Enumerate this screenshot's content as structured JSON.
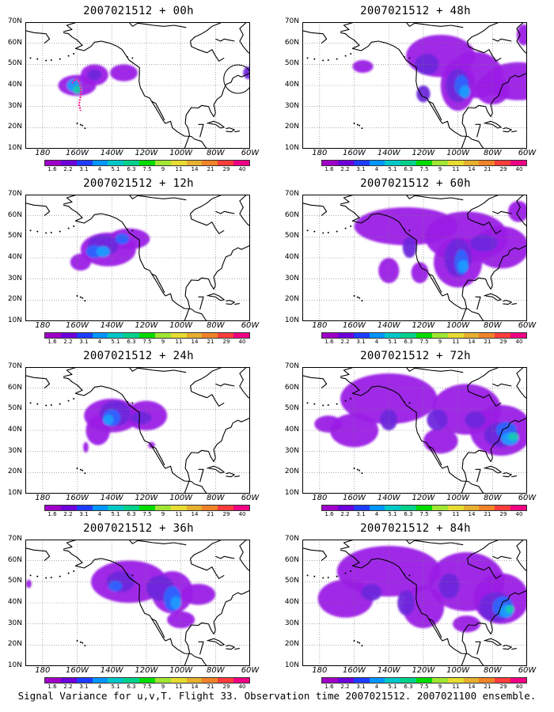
{
  "caption": "Signal Variance for u,v,T. Flight 33. Observation time 2007021512. 2007021100 ensemble.",
  "axes": {
    "lat_labels": [
      "70N",
      "60N",
      "50N",
      "40N",
      "30N",
      "20N",
      "10N"
    ],
    "lon_labels": [
      "180",
      "160W",
      "140W",
      "120W",
      "100W",
      "80W",
      "60W"
    ],
    "lon_range": [
      170,
      60
    ],
    "lat_range": [
      10,
      70
    ],
    "grid": "dotted"
  },
  "colorbar": {
    "labels": [
      "1.6",
      "2.2",
      "3.1",
      "4",
      "5.1",
      "6.3",
      "7.5",
      "9",
      "11",
      "14",
      "21",
      "29",
      "40"
    ],
    "colors": [
      "#a000c8",
      "#6e00dc",
      "#1e3cff",
      "#0096ff",
      "#00c8c8",
      "#00d28c",
      "#00dc00",
      "#a0e632",
      "#e6dc32",
      "#e6af2d",
      "#f08228",
      "#fa3c3c",
      "#f00082"
    ]
  },
  "panels": [
    {
      "title": "2007021512 + 00h"
    },
    {
      "title": "2007021512 + 48h"
    },
    {
      "title": "2007021512 + 12h"
    },
    {
      "title": "2007021512 + 60h"
    },
    {
      "title": "2007021512 + 24h"
    },
    {
      "title": "2007021512 + 72h"
    },
    {
      "title": "2007021512 + 36h"
    },
    {
      "title": "2007021512 + 84h"
    }
  ],
  "colors": {
    "purple": "#9b1ee6",
    "deep_purple": "#6e28dc",
    "blue": "#2d64ff",
    "sky": "#1e9bff",
    "teal": "#14c8b4",
    "magenta": "#ff1e8c"
  }
}
